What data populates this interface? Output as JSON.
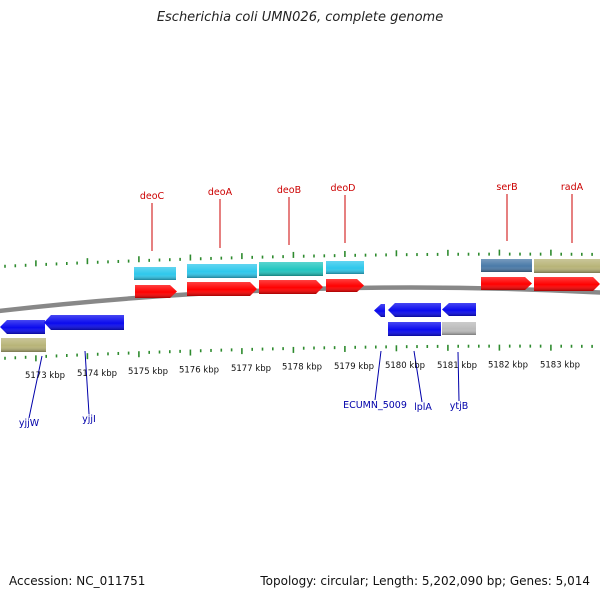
{
  "title": "Escherichia coli UMN026, complete genome",
  "footer": {
    "accession": "Accession: NC_011751",
    "stats": "Topology: circular; Length: 5,202,090 bp; Genes: 5,014"
  },
  "colors": {
    "backbone": "#888888",
    "tick": "#2e8b2e",
    "scale_text": "#111111",
    "label_top": "#cc0000",
    "label_bottom": "#0000aa",
    "red": "#ff0000",
    "cyan": "#2ec8ec",
    "teal": "#22c6c0",
    "steel": "#4a7aa8",
    "khaki": "#b8b478",
    "blue": "#0a0aee",
    "gray": "#bbbbbb"
  },
  "scale": {
    "unit": "kbp",
    "labels": [
      "5173 kbp",
      "5174 kbp",
      "5175 kbp",
      "5176 kbp",
      "5177 kbp",
      "5178 kbp",
      "5179 kbp",
      "5180 kbp",
      "5181 kbp",
      "5182 kbp",
      "5183 kbp"
    ]
  },
  "gene_labels": {
    "top": [
      "deoC",
      "deoA",
      "deoB",
      "deoD",
      "serB",
      "radA"
    ],
    "bottom": [
      "yjjW",
      "yjjI",
      "ECUMN_5009",
      "lplA",
      "ytjB"
    ]
  }
}
